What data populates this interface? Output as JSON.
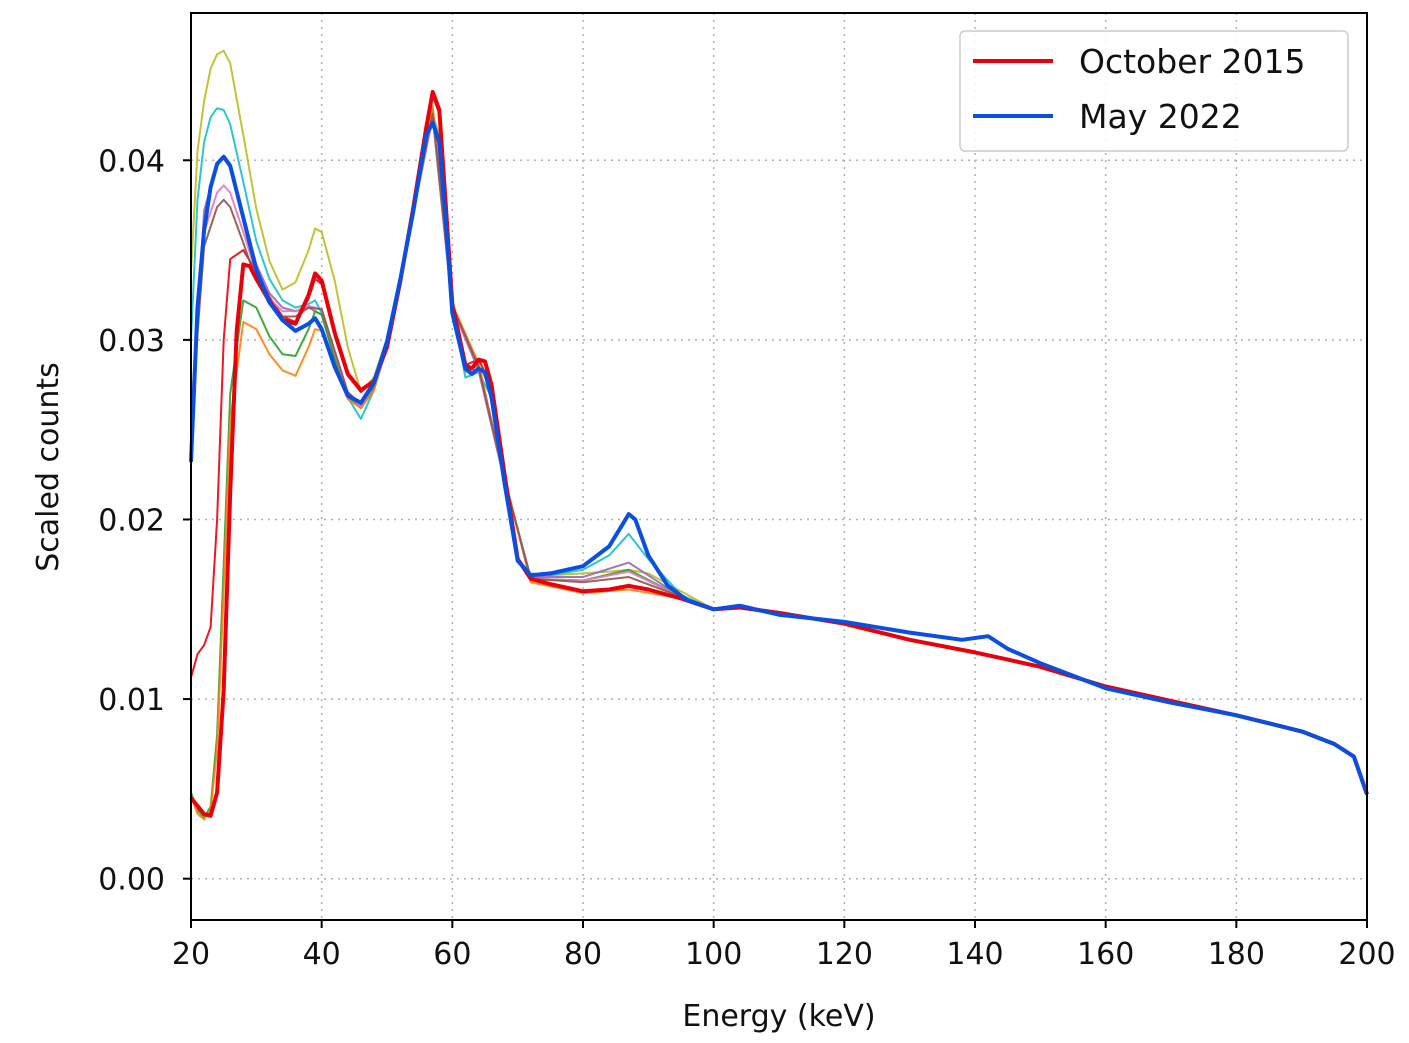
{
  "chart_data": {
    "type": "line",
    "title": "",
    "xlabel": "Energy (keV)",
    "ylabel": "Scaled counts",
    "xlim": [
      20,
      200
    ],
    "ylim": [
      -0.0023,
      0.0482
    ],
    "xticks": [
      20,
      40,
      60,
      80,
      100,
      120,
      140,
      160,
      180,
      200
    ],
    "xtick_labels": [
      "20",
      "40",
      "60",
      "80",
      "100",
      "120",
      "140",
      "160",
      "180",
      "200"
    ],
    "yticks": [
      0.0,
      0.01,
      0.02,
      0.03,
      0.04
    ],
    "ytick_labels": [
      "0.00",
      "0.01",
      "0.02",
      "0.03",
      "0.04"
    ],
    "grid": true,
    "grid_style": "dotted",
    "legend_position": "top-right",
    "legend": [
      {
        "label": "October 2015",
        "color": "#e8000b"
      },
      {
        "label": "May 2022",
        "color": "#0b4fe0"
      }
    ],
    "series": [
      {
        "name": "October 2015",
        "color": "#e8000b",
        "width": 4,
        "x": [
          20,
          22,
          23,
          24,
          25,
          26,
          27,
          28,
          29,
          30,
          32,
          34,
          36,
          38,
          39,
          40,
          42,
          44,
          46,
          48,
          50,
          52,
          54,
          56,
          57,
          58,
          59,
          60,
          62,
          63,
          64,
          65,
          66,
          68,
          70,
          72,
          75,
          80,
          84,
          87,
          90,
          95,
          100,
          104,
          110,
          120,
          130,
          140,
          145,
          150,
          160,
          170,
          180,
          190,
          195,
          198,
          200
        ],
        "y": [
          0.0045,
          0.0036,
          0.0035,
          0.0048,
          0.0105,
          0.0215,
          0.0305,
          0.0342,
          0.0341,
          0.0334,
          0.0322,
          0.0311,
          0.0309,
          0.0325,
          0.0337,
          0.0333,
          0.0304,
          0.0281,
          0.0272,
          0.0277,
          0.0296,
          0.0332,
          0.0373,
          0.0418,
          0.0438,
          0.0428,
          0.0375,
          0.032,
          0.0286,
          0.0284,
          0.0289,
          0.0288,
          0.0275,
          0.0225,
          0.0178,
          0.0167,
          0.0164,
          0.016,
          0.0161,
          0.0163,
          0.0161,
          0.0156,
          0.015,
          0.0151,
          0.0148,
          0.0142,
          0.0133,
          0.0126,
          0.0122,
          0.0118,
          0.0107,
          0.0099,
          0.0091,
          0.0082,
          0.0075,
          0.0068,
          0.0047
        ]
      },
      {
        "name": "May 2022",
        "color": "#0b4fe0",
        "width": 4,
        "x": [
          20,
          21,
          22,
          23,
          24,
          25,
          26,
          28,
          30,
          32,
          34,
          36,
          38,
          39,
          40,
          42,
          44,
          46,
          48,
          50,
          52,
          54,
          56,
          57,
          58,
          59,
          60,
          62,
          63,
          64,
          65,
          66,
          68,
          70,
          72,
          75,
          80,
          84,
          86,
          87,
          88,
          90,
          93,
          96,
          100,
          104,
          110,
          120,
          130,
          138,
          142,
          145,
          150,
          160,
          170,
          180,
          190,
          195,
          198,
          200
        ],
        "y": [
          0.0232,
          0.0318,
          0.0361,
          0.0385,
          0.0398,
          0.0402,
          0.0397,
          0.0368,
          0.0339,
          0.0321,
          0.0311,
          0.0305,
          0.0309,
          0.0312,
          0.0306,
          0.0285,
          0.0269,
          0.0265,
          0.0276,
          0.0299,
          0.0333,
          0.0371,
          0.0414,
          0.0421,
          0.041,
          0.0366,
          0.0315,
          0.0284,
          0.0281,
          0.0284,
          0.0282,
          0.0268,
          0.022,
          0.0177,
          0.0169,
          0.017,
          0.0174,
          0.0185,
          0.0197,
          0.0203,
          0.02,
          0.018,
          0.0163,
          0.0155,
          0.015,
          0.0152,
          0.0147,
          0.0143,
          0.0137,
          0.0133,
          0.0135,
          0.0128,
          0.012,
          0.0106,
          0.0098,
          0.0091,
          0.0082,
          0.0075,
          0.0068,
          0.0047
        ]
      }
    ],
    "unlabeled_series": [
      {
        "color": "#bcbd22",
        "x": [
          20,
          21,
          22,
          23,
          24,
          25,
          26,
          28,
          30,
          32,
          34,
          36,
          38,
          39,
          40,
          42,
          44,
          46,
          48,
          50,
          52,
          54,
          56,
          57,
          58,
          60,
          62,
          64,
          66,
          68,
          70,
          72,
          75,
          80,
          84,
          87,
          90,
          95,
          100
        ],
        "y": [
          0.0338,
          0.0405,
          0.0433,
          0.0451,
          0.0459,
          0.0461,
          0.0454,
          0.0414,
          0.0373,
          0.0344,
          0.0328,
          0.0332,
          0.035,
          0.0362,
          0.036,
          0.0333,
          0.0296,
          0.0271,
          0.0279,
          0.0301,
          0.0336,
          0.0374,
          0.0418,
          0.0426,
          0.0414,
          0.032,
          0.0282,
          0.0286,
          0.0272,
          0.0222,
          0.0178,
          0.017,
          0.0169,
          0.017,
          0.0171,
          0.0172,
          0.017,
          0.016,
          0.015
        ]
      },
      {
        "color": "#17becf",
        "x": [
          20,
          21,
          22,
          23,
          24,
          25,
          26,
          28,
          30,
          32,
          34,
          36,
          38,
          39,
          40,
          42,
          44,
          46,
          48,
          50,
          52,
          54,
          56,
          57,
          58,
          60,
          62,
          64,
          66,
          68,
          70,
          72,
          75,
          80,
          84,
          87,
          90,
          95,
          100
        ],
        "y": [
          0.03,
          0.0378,
          0.041,
          0.0424,
          0.0429,
          0.0428,
          0.042,
          0.0388,
          0.0355,
          0.0334,
          0.0322,
          0.0318,
          0.032,
          0.0322,
          0.0315,
          0.029,
          0.0268,
          0.0256,
          0.0272,
          0.0296,
          0.0331,
          0.0369,
          0.0416,
          0.0424,
          0.0412,
          0.0318,
          0.0279,
          0.0282,
          0.0268,
          0.022,
          0.0177,
          0.0169,
          0.0169,
          0.0172,
          0.018,
          0.0192,
          0.0178,
          0.0158,
          0.015
        ]
      },
      {
        "color": "#9467bd",
        "x": [
          20,
          22,
          24,
          25,
          26,
          28,
          30,
          32,
          34,
          36,
          38,
          40,
          42,
          44,
          46,
          48,
          50,
          54,
          57,
          60,
          64,
          68,
          72,
          80,
          87,
          95,
          100
        ],
        "y": [
          0.025,
          0.0372,
          0.0398,
          0.0401,
          0.0396,
          0.037,
          0.0342,
          0.0326,
          0.0318,
          0.0316,
          0.0318,
          0.0314,
          0.029,
          0.0268,
          0.0262,
          0.0274,
          0.0298,
          0.037,
          0.0424,
          0.0318,
          0.0283,
          0.0221,
          0.0168,
          0.0168,
          0.0176,
          0.0157,
          0.015
        ]
      },
      {
        "color": "#2ca02c",
        "x": [
          20,
          21,
          22,
          23,
          24,
          25,
          26,
          28,
          30,
          32,
          34,
          36,
          38,
          39,
          40,
          42,
          44,
          46,
          48,
          50,
          54,
          57,
          60,
          64,
          68,
          72,
          80,
          87,
          95,
          100
        ],
        "y": [
          0.0048,
          0.0038,
          0.0034,
          0.004,
          0.008,
          0.0175,
          0.027,
          0.0322,
          0.0318,
          0.0302,
          0.0292,
          0.0291,
          0.0306,
          0.0316,
          0.0314,
          0.0289,
          0.0269,
          0.0262,
          0.0273,
          0.0297,
          0.037,
          0.0428,
          0.0319,
          0.0286,
          0.0223,
          0.0167,
          0.0166,
          0.0172,
          0.0157,
          0.015
        ]
      },
      {
        "color": "#ff7f0e",
        "x": [
          20,
          21,
          22,
          23,
          24,
          25,
          26,
          28,
          30,
          32,
          34,
          36,
          38,
          39,
          40,
          42,
          44,
          46,
          48,
          50,
          54,
          57,
          60,
          64,
          68,
          72,
          80,
          87,
          95,
          100
        ],
        "y": [
          0.0046,
          0.0036,
          0.0033,
          0.0038,
          0.0072,
          0.016,
          0.0255,
          0.031,
          0.0306,
          0.0292,
          0.0283,
          0.028,
          0.0296,
          0.0306,
          0.0305,
          0.0284,
          0.0267,
          0.0262,
          0.0272,
          0.0296,
          0.037,
          0.043,
          0.032,
          0.0287,
          0.0223,
          0.0165,
          0.0159,
          0.0161,
          0.0156,
          0.015
        ]
      },
      {
        "color": "#e8000b",
        "x": [
          20,
          21,
          22,
          23,
          24,
          25,
          26,
          28,
          30,
          32,
          34,
          36,
          38,
          39,
          40,
          42,
          44,
          46,
          48,
          50,
          52,
          54,
          56,
          57,
          58,
          60,
          62,
          64,
          66,
          68,
          70,
          72,
          75,
          80,
          84,
          87,
          90,
          95,
          100
        ],
        "y": [
          0.0112,
          0.0125,
          0.013,
          0.014,
          0.02,
          0.03,
          0.0345,
          0.035,
          0.0338,
          0.0324,
          0.0313,
          0.031,
          0.0323,
          0.0334,
          0.0331,
          0.0302,
          0.028,
          0.0271,
          0.0277,
          0.0296,
          0.0332,
          0.0373,
          0.0418,
          0.0436,
          0.0426,
          0.032,
          0.0286,
          0.0289,
          0.0275,
          0.0225,
          0.0178,
          0.0167,
          0.0164,
          0.016,
          0.0161,
          0.0163,
          0.0161,
          0.0156,
          0.015
        ]
      },
      {
        "color": "#e377c2",
        "x": [
          20,
          22,
          24,
          25,
          26,
          28,
          30,
          32,
          34,
          36,
          38,
          40,
          42,
          44,
          46,
          48,
          50,
          54,
          57,
          60,
          64,
          68,
          72,
          80,
          87,
          95,
          100
        ],
        "y": [
          0.026,
          0.036,
          0.0382,
          0.0386,
          0.0382,
          0.036,
          0.0337,
          0.0323,
          0.0316,
          0.0316,
          0.0319,
          0.0317,
          0.0293,
          0.027,
          0.0263,
          0.0275,
          0.0298,
          0.037,
          0.0425,
          0.0318,
          0.0284,
          0.0222,
          0.0167,
          0.0166,
          0.0171,
          0.0157,
          0.015
        ]
      },
      {
        "color": "#8c564b",
        "x": [
          20,
          22,
          24,
          25,
          26,
          28,
          30,
          32,
          34,
          36,
          38,
          40,
          42,
          44,
          46,
          48,
          50,
          54,
          57,
          60,
          64,
          68,
          72,
          80,
          87,
          95,
          100
        ],
        "y": [
          0.0255,
          0.0352,
          0.0374,
          0.0378,
          0.0374,
          0.0354,
          0.0333,
          0.032,
          0.0313,
          0.0313,
          0.0318,
          0.0317,
          0.0294,
          0.0271,
          0.0264,
          0.0275,
          0.0298,
          0.0371,
          0.0426,
          0.0319,
          0.0285,
          0.0222,
          0.0167,
          0.0165,
          0.0168,
          0.0157,
          0.015
        ]
      }
    ]
  }
}
